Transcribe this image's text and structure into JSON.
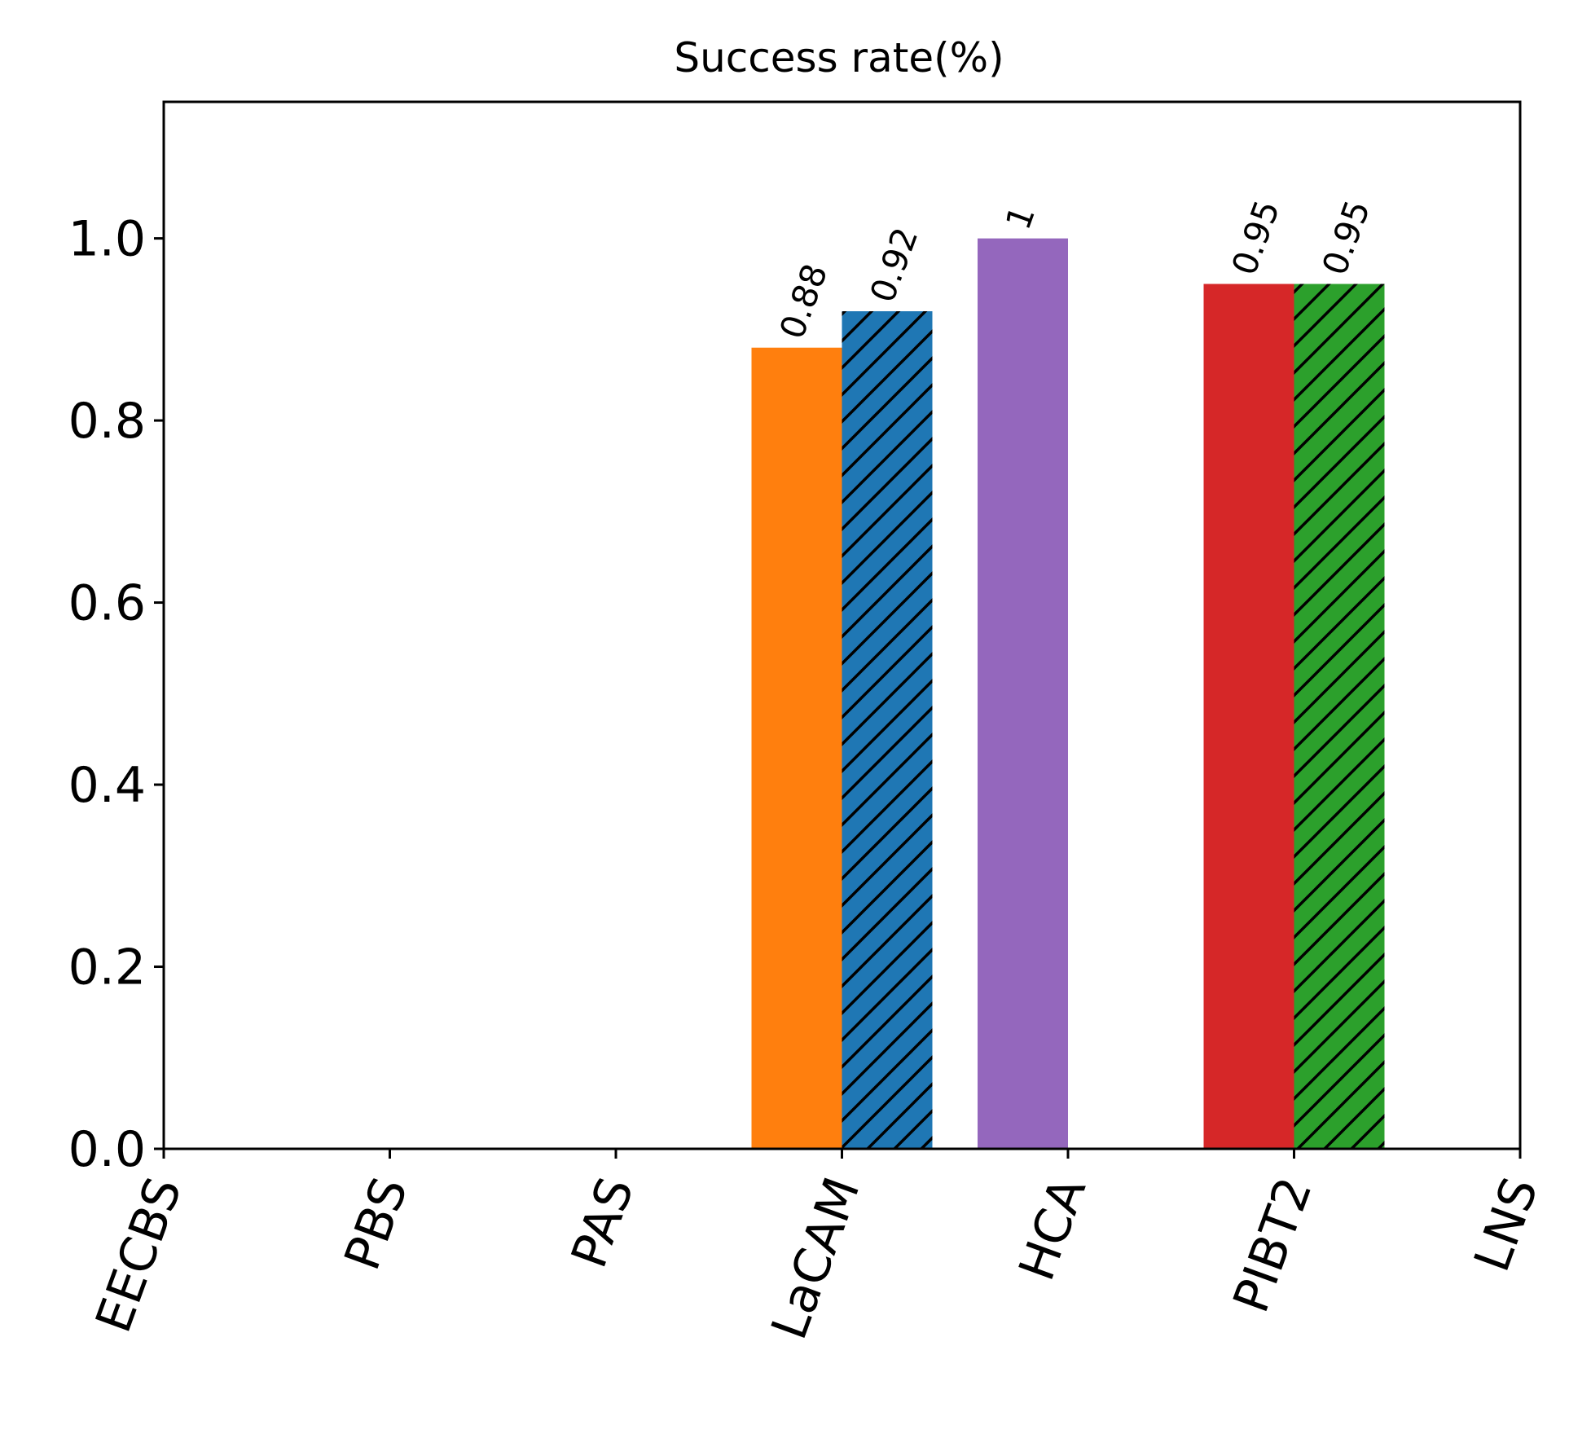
{
  "chart_data": {
    "type": "bar",
    "title": "Success rate(%)",
    "xlabel": "",
    "ylabel": "",
    "categories": [
      "EECBS",
      "PBS",
      "PAS",
      "LaCAM",
      "HCA",
      "PIBT2",
      "LNS"
    ],
    "ylim": [
      0,
      1.15
    ],
    "yticks": [
      0.0,
      0.2,
      0.4,
      0.6,
      0.8,
      1.0
    ],
    "yticks_labels": [
      "0.0",
      "0.2",
      "0.4",
      "0.6",
      "0.8",
      "1.0"
    ],
    "grid": false,
    "legend": "none",
    "bars": [
      {
        "category_index": 3,
        "offset": "left",
        "value": 0.88,
        "label": "0.88",
        "color": "#ff7f0e",
        "hatch": false
      },
      {
        "category_index": 3,
        "offset": "right",
        "value": 0.92,
        "label": "0.92",
        "color": "#1f77b4",
        "hatch": true
      },
      {
        "category_index": 4,
        "offset": "left",
        "value": 1.0,
        "label": "1",
        "color": "#9467bd",
        "hatch": false
      },
      {
        "category_index": 5,
        "offset": "left",
        "value": 0.95,
        "label": "0.95",
        "color": "#d62728",
        "hatch": false
      },
      {
        "category_index": 5,
        "offset": "right",
        "value": 0.95,
        "label": "0.95",
        "color": "#2ca02c",
        "hatch": true
      }
    ]
  }
}
